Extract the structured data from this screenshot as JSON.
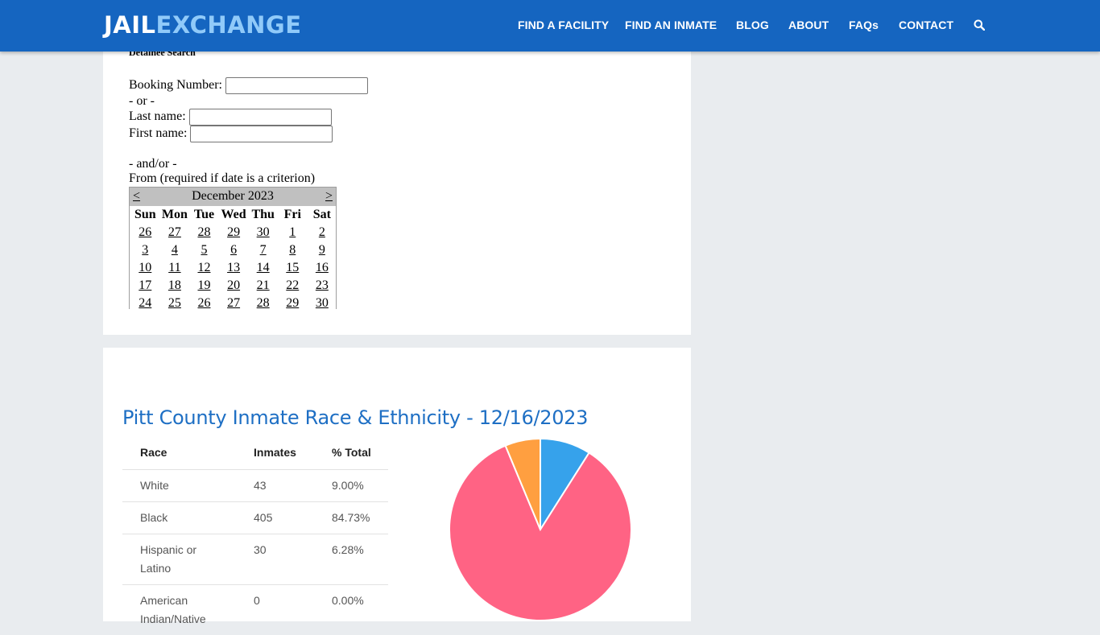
{
  "header": {
    "logo_part1": "JAIL",
    "logo_part2": "EXCHANGE",
    "nav": [
      "FIND A FACILITY",
      "FIND AN INMATE",
      "BLOG",
      "ABOUT",
      "FAQs",
      "CONTACT"
    ]
  },
  "detainee_search": {
    "title": "Detainee Search",
    "booking_label": "Booking Number:",
    "or_label": "- or -",
    "last_name_label": "Last name:",
    "first_name_label": "First name:",
    "and_or_label": "- and/or -",
    "from_label": "From (required if date is a criterion)",
    "calendar": {
      "prev": "<",
      "next": ">",
      "month": "December 2023",
      "weekdays": [
        "Sun",
        "Mon",
        "Tue",
        "Wed",
        "Thu",
        "Fri",
        "Sat"
      ],
      "weeks": [
        [
          "26",
          "27",
          "28",
          "29",
          "30",
          "1",
          "2"
        ],
        [
          "3",
          "4",
          "5",
          "6",
          "7",
          "8",
          "9"
        ],
        [
          "10",
          "11",
          "12",
          "13",
          "14",
          "15",
          "16"
        ],
        [
          "17",
          "18",
          "19",
          "20",
          "21",
          "22",
          "23"
        ],
        [
          "24",
          "25",
          "26",
          "27",
          "28",
          "29",
          "30"
        ]
      ]
    }
  },
  "stats": {
    "title": "Pitt County Inmate Race & Ethnicity - 12/16/2023",
    "headers": [
      "Race",
      "Inmates",
      "% Total"
    ],
    "rows": [
      {
        "race": "White",
        "inmates": "43",
        "pct": "9.00%"
      },
      {
        "race": "Black",
        "inmates": "405",
        "pct": "84.73%"
      },
      {
        "race": "Hispanic or Latino",
        "inmates": "30",
        "pct": "6.28%"
      },
      {
        "race": "American Indian/Native",
        "inmates": "0",
        "pct": "0.00%"
      }
    ]
  },
  "chart_data": {
    "type": "pie",
    "categories": [
      "White",
      "Black",
      "Hispanic or Latino",
      "American Indian/Native"
    ],
    "values": [
      43,
      405,
      30,
      0
    ],
    "colors": [
      "#36a2eb",
      "#ff6384",
      "#ff9f40",
      "#ffcd56"
    ]
  }
}
